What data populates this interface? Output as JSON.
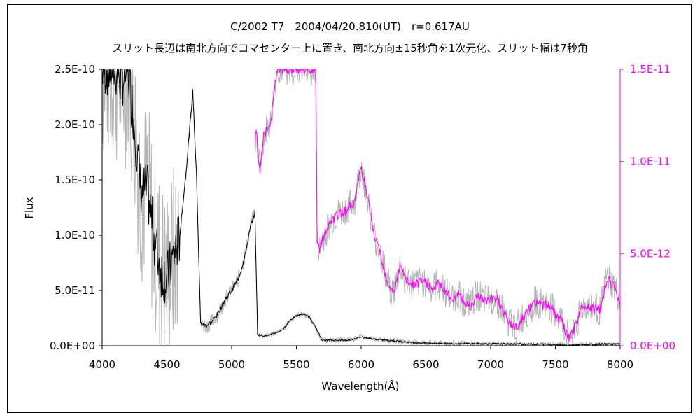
{
  "chart_data": {
    "type": "line",
    "title": "C/2002 T7　2004/04/20.810(UT)　r=0.617AU",
    "subtitle": "スリット長辺は南北方向でコマセンター上に置き、南北方向±15秒角を1次元化、スリット幅は7秒角",
    "xlabel": "Wavelength(Å)",
    "ylabel": "Flux",
    "xlim": [
      4000,
      8000
    ],
    "ylim_left": [
      0,
      2.5e-10
    ],
    "ylim_right": [
      0,
      1.5e-11
    ],
    "x_ticks": [
      "4000",
      "4500",
      "5000",
      "5500",
      "6000",
      "6500",
      "7000",
      "7500",
      "8000"
    ],
    "y_left_ticks": [
      "0.0E+00",
      "5.0E-11",
      "1.0E-10",
      "1.5E-10",
      "2.0E-10",
      "2.5E-10"
    ],
    "y_right_ticks": [
      "0.0E+00",
      "5.0E-12",
      "1.0E-11",
      "1.5E-11"
    ],
    "grid": false,
    "legend": "none",
    "colors": {
      "left_series": "#000000",
      "right_series": "#ff00ff",
      "raw": "#b4b4b4",
      "right_axis_text": "#ff00ff"
    },
    "series": [
      {
        "axis": "left",
        "x": [
          4000,
          4050,
          4100,
          4150,
          4200,
          4250,
          4300,
          4350,
          4400,
          4450,
          4500,
          4550,
          4600,
          4650,
          4700,
          4730,
          4760,
          4800,
          4850,
          4900,
          4950,
          5000,
          5050,
          5100,
          5150,
          5180,
          5200,
          5250,
          5300,
          5350,
          5400,
          5450,
          5500,
          5550,
          5600,
          5650,
          5700,
          5800,
          5900,
          6000,
          6100,
          6200,
          6300,
          6400,
          6500,
          6700,
          7000,
          7300,
          7500,
          7600,
          7700,
          7800,
          7900,
          8000
        ],
        "y": [
          2.5e-10,
          2.5e-10,
          2.5e-10,
          2.4e-10,
          2.5e-10,
          2e-10,
          1.4e-10,
          1.4e-10,
          1e-10,
          7e-11,
          6e-11,
          8e-11,
          1e-10,
          1.6e-10,
          2.3e-10,
          1.5e-10,
          2e-11,
          1.8e-11,
          2.2e-11,
          3e-11,
          4.2e-11,
          5e-11,
          6e-11,
          8e-11,
          1.1e-10,
          1.2e-10,
          1e-11,
          9e-12,
          1e-11,
          1.2e-11,
          1.5e-11,
          2.3e-11,
          2.7e-11,
          2.9e-11,
          2.6e-11,
          1.6e-11,
          5e-12,
          5e-12,
          5e-12,
          8e-12,
          6e-12,
          5e-12,
          4e-12,
          3e-12,
          2.5e-12,
          2e-12,
          1.8e-12,
          1.5e-12,
          1.2e-12,
          3e-13,
          1e-12,
          1.1e-12,
          1.6e-12,
          1.4e-12
        ]
      },
      {
        "axis": "right",
        "x": [
          5180,
          5190,
          5200,
          5220,
          5250,
          5300,
          5350,
          5400,
          5450,
          5500,
          5550,
          5600,
          5620,
          5650,
          5660,
          5680,
          5700,
          5750,
          5800,
          5850,
          5900,
          5950,
          6000,
          6050,
          6100,
          6150,
          6200,
          6250,
          6300,
          6350,
          6400,
          6450,
          6500,
          6550,
          6600,
          6650,
          6700,
          6750,
          6800,
          6850,
          6900,
          6950,
          7000,
          7050,
          7100,
          7150,
          7200,
          7250,
          7300,
          7350,
          7400,
          7450,
          7500,
          7550,
          7600,
          7620,
          7650,
          7700,
          7750,
          7800,
          7850,
          7900,
          7950,
          8000
        ],
        "y": [
          1.1e-11,
          1.2e-11,
          1.05e-11,
          9.5e-12,
          1.15e-11,
          1.2e-11,
          1.5e-11,
          1.5e-11,
          1.5e-11,
          1.5e-11,
          1.5e-11,
          1.5e-11,
          1.5e-11,
          1.5e-11,
          5.5e-12,
          5.2e-12,
          5.8e-12,
          6.5e-12,
          7e-12,
          7.2e-12,
          7.5e-12,
          7.8e-12,
          9.8e-12,
          8e-12,
          6e-12,
          5e-12,
          3.5e-12,
          2.8e-12,
          4.3e-12,
          3.5e-12,
          3.3e-12,
          3.4e-12,
          3.5e-12,
          3e-12,
          3.4e-12,
          3e-12,
          2.5e-12,
          2.8e-12,
          2.3e-12,
          2.2e-12,
          2.8e-12,
          2.4e-12,
          2.5e-12,
          2.6e-12,
          1.8e-12,
          1.2e-12,
          1e-12,
          1.5e-12,
          2e-12,
          2.4e-12,
          2.2e-12,
          2.2e-12,
          1.7e-12,
          1.3e-12,
          4e-13,
          5e-13,
          1e-12,
          2e-12,
          2.2e-12,
          2e-12,
          2e-12,
          3.7e-12,
          3.2e-12,
          2.4e-12
        ]
      }
    ]
  }
}
